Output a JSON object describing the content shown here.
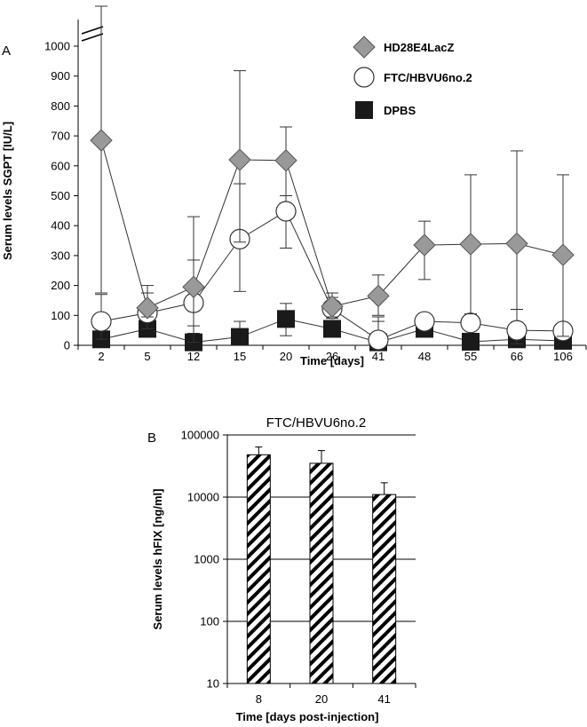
{
  "chart_data": [
    {
      "panel_label": "A",
      "type": "line",
      "title": "",
      "xlabel": "Time [days]",
      "ylabel": "Serum levels SGPT [IU/L]",
      "categories": [
        "2",
        "5",
        "12",
        "15",
        "20",
        "26",
        "41",
        "48",
        "55",
        "66",
        "106"
      ],
      "ylim": [
        0,
        1000
      ],
      "yticks": [
        0,
        100,
        200,
        300,
        400,
        500,
        600,
        700,
        800,
        900,
        1000
      ],
      "axis_break": true,
      "grid": false,
      "legend_position": "top-right",
      "series": [
        {
          "name": "HD28E4LacZ",
          "marker": "diamond",
          "color": "#999999",
          "values": [
            685,
            125,
            195,
            620,
            618,
            130,
            165,
            335,
            338,
            340,
            302
          ],
          "error_upper": [
            1150,
            200,
            430,
            918,
            730,
            175,
            235,
            415,
            570,
            650,
            570
          ],
          "error_lower": [
            175,
            95,
            65,
            345,
            500,
            95,
            100,
            220,
            105,
            120,
            30
          ]
        },
        {
          "name": "FTC/HBVU6no.2",
          "marker": "circle",
          "color": "#ffffff",
          "values": [
            80,
            108,
            142,
            355,
            448,
            122,
            18,
            80,
            75,
            50,
            48
          ],
          "error_upper": [
            170,
            175,
            285,
            540,
            500,
            160,
            80,
            95,
            95,
            120,
            70
          ],
          "error_lower": [
            20,
            55,
            10,
            180,
            325,
            90,
            5,
            65,
            50,
            5,
            30
          ]
        },
        {
          "name": "DPBS",
          "marker": "square",
          "color": "#1a1a1a",
          "values": [
            20,
            55,
            10,
            28,
            88,
            55,
            10,
            55,
            12,
            20,
            15
          ],
          "error_upper": [
            75,
            60,
            40,
            80,
            140,
            60,
            95,
            60,
            20,
            30,
            25
          ],
          "error_lower": [
            5,
            50,
            0,
            5,
            32,
            50,
            0,
            50,
            5,
            10,
            5
          ]
        }
      ]
    },
    {
      "panel_label": "B",
      "type": "bar",
      "title": "FTC/HBVU6no.2",
      "xlabel": "Time [days post-injection]",
      "ylabel": "Serum levels hFIX [ng/ml]",
      "categories": [
        "8",
        "20",
        "41"
      ],
      "values": [
        48000,
        35000,
        11000
      ],
      "error_upper": [
        64000,
        56000,
        17000
      ],
      "ylim": [
        10,
        100000
      ],
      "yscale": "log",
      "yticks": [
        "10",
        "100",
        "1000",
        "10000",
        "100000"
      ],
      "fill": "diagonal-hatch",
      "grid": true
    }
  ]
}
